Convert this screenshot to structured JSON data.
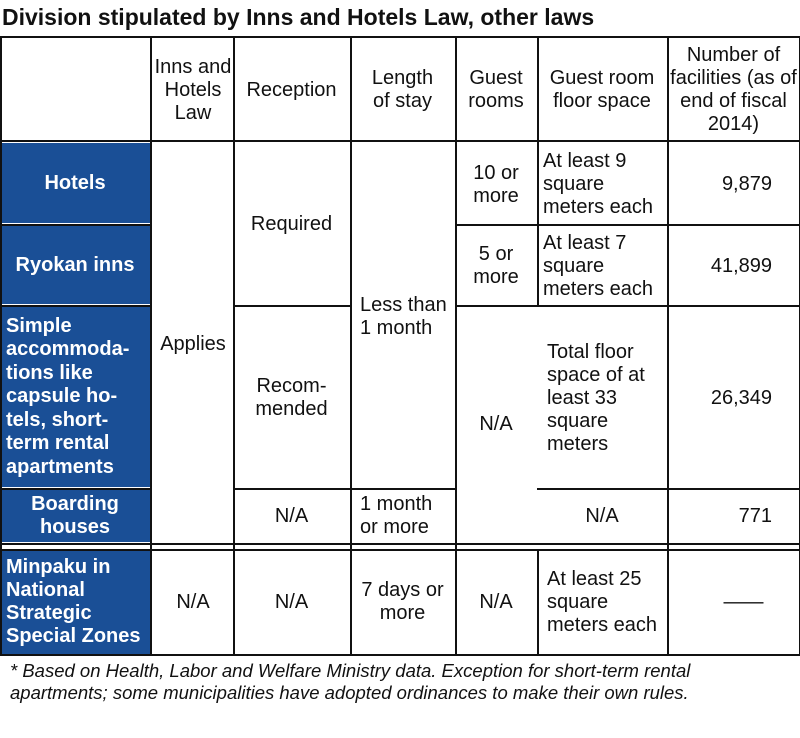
{
  "title": "Division stipulated by Inns and Hotels Law, other laws",
  "headers": {
    "inns_law": "Inns and Hotels Law",
    "reception": "Reception",
    "length": "Length of stay",
    "guest_rooms": "Guest rooms",
    "floor_space": "Guest room floor space",
    "facilities": "Number of facilities (as of end of fiscal 2014)"
  },
  "rows": {
    "hotels": {
      "label": "Hotels",
      "rooms": "10 or more",
      "floor": "At least 9 square meters each",
      "count": "9,879"
    },
    "ryokan": {
      "label": "Ryokan inns",
      "rooms": "5 or more",
      "floor": "At least 7 square meters each",
      "count": "41,899"
    },
    "simple": {
      "label": "Simple accommoda-tions like capsule ho-tels, short-term rental apartments",
      "reception": "Recom-mended",
      "rooms": "N/A",
      "floor": "Total floor space of at least 33 square meters",
      "count": "26,349"
    },
    "boarding": {
      "label": "Boarding houses",
      "reception": "N/A",
      "length": "1 month or more",
      "floor": "N/A",
      "count": "771"
    },
    "minpaku": {
      "label": "Minpaku in National Strategic Special Zones",
      "law": "N/A",
      "reception": "N/A",
      "length": "7 days or more",
      "rooms": "N/A",
      "floor": "At least 25 square meters each",
      "count": "——"
    }
  },
  "merged": {
    "applies": "Applies",
    "required": "Required",
    "less_than_month": "Less than 1 month"
  },
  "footnote": "* Based on Health, Labor and Welfare Ministry data. Exception for short-term rental apartments; some municipalities have adopted ordinances to make their own rules.",
  "colors": {
    "row_label_bg": "#1a4f96",
    "row_label_text": "#ffffff"
  }
}
